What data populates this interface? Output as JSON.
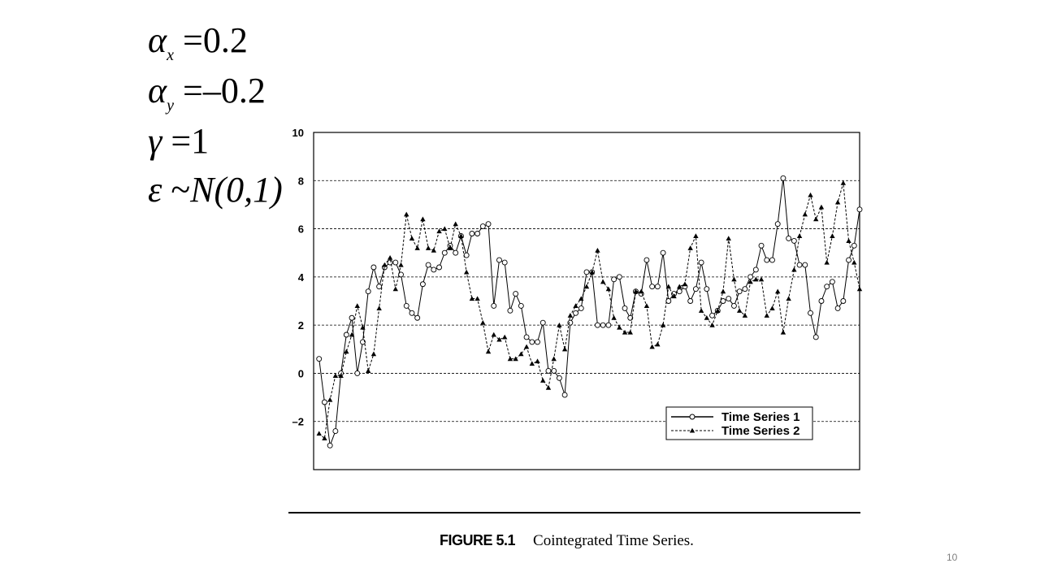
{
  "equations": [
    {
      "lhs": "α",
      "sub": "x",
      "rel": "=",
      "rhs": "0.2"
    },
    {
      "lhs": "α",
      "sub": "y",
      "rel": "=",
      "rhs": "–0.2"
    },
    {
      "lhs": "γ",
      "sub": "",
      "rel": "=",
      "rhs": "1"
    },
    {
      "lhs": "ε",
      "sub": "",
      "rel": "~",
      "rhs": "N(0,1)"
    }
  ],
  "caption": {
    "label": "FIGURE 5.1",
    "text": "Cointegrated Time Series."
  },
  "slide_number": "10",
  "chart_data": {
    "type": "line",
    "title": "",
    "xlabel": "",
    "ylabel": "",
    "xlim": [
      0,
      100
    ],
    "ylim": [
      -4,
      10
    ],
    "x_ticks": [
      10,
      30,
      50,
      70,
      90
    ],
    "y_ticks": [
      -2,
      0,
      2,
      4,
      6,
      8,
      10
    ],
    "y_tick_labels": [
      "–2",
      "0",
      "2",
      "4",
      "6",
      "8",
      "10"
    ],
    "grid": "horizontal dashed",
    "legend_position": "bottom-right",
    "series": [
      {
        "name": "Time Series 1",
        "style": "solid, open circles",
        "color": "#000000",
        "values": [
          0.6,
          -1.2,
          -3.0,
          -2.4,
          0.0,
          1.6,
          2.3,
          0.0,
          1.3,
          3.4,
          4.4,
          3.6,
          4.4,
          4.6,
          4.6,
          4.1,
          2.8,
          2.5,
          2.3,
          3.7,
          4.5,
          4.3,
          4.4,
          5.0,
          5.3,
          5.0,
          5.7,
          4.9,
          5.8,
          5.8,
          6.1,
          6.2,
          2.8,
          4.7,
          4.6,
          2.6,
          3.3,
          2.8,
          1.5,
          1.3,
          1.3,
          2.1,
          0.1,
          0.1,
          -0.2,
          -0.9,
          2.1,
          2.5,
          2.7,
          4.2,
          4.2,
          2.0,
          2.0,
          2.0,
          3.9,
          4.0,
          2.7,
          2.3,
          3.4,
          3.3,
          4.7,
          3.6,
          3.6,
          5.0,
          3.0,
          3.3,
          3.4,
          3.6,
          3.0,
          3.5,
          4.6,
          3.5,
          2.4,
          2.6,
          3.0,
          3.1,
          2.8,
          3.4,
          3.5,
          4.0,
          4.3,
          5.3,
          4.7,
          4.7,
          6.2,
          8.1,
          5.6,
          5.5,
          4.5,
          4.5,
          2.5,
          1.5,
          3.0,
          3.6,
          3.8,
          2.7,
          3.0,
          4.7,
          5.3,
          6.8
        ]
      },
      {
        "name": "Time Series 2",
        "style": "dashed, filled triangles",
        "color": "#000000",
        "values": [
          -2.5,
          -2.7,
          -1.1,
          -0.1,
          -0.1,
          0.9,
          1.6,
          2.8,
          1.9,
          0.1,
          0.8,
          2.7,
          4.5,
          4.8,
          3.5,
          4.5,
          6.6,
          5.6,
          5.2,
          6.4,
          5.2,
          5.1,
          5.9,
          6.0,
          5.2,
          6.2,
          5.7,
          4.2,
          3.1,
          3.1,
          2.1,
          0.9,
          1.6,
          1.4,
          1.5,
          0.6,
          0.6,
          0.8,
          1.1,
          0.4,
          0.5,
          -0.3,
          -0.6,
          0.6,
          2.0,
          1.0,
          2.4,
          2.8,
          3.1,
          3.6,
          4.2,
          5.1,
          3.8,
          3.5,
          2.3,
          1.9,
          1.7,
          1.7,
          3.4,
          3.4,
          2.8,
          1.1,
          1.2,
          2.0,
          3.6,
          3.2,
          3.6,
          3.7,
          5.2,
          5.7,
          2.6,
          2.3,
          2.0,
          2.6,
          3.4,
          5.6,
          3.9,
          2.6,
          2.4,
          3.8,
          3.9,
          3.9,
          2.4,
          2.7,
          3.4,
          1.7,
          3.1,
          4.3,
          5.7,
          6.6,
          7.4,
          6.4,
          6.9,
          4.6,
          5.7,
          7.1,
          7.9,
          5.5,
          4.6,
          3.5
        ]
      }
    ]
  }
}
